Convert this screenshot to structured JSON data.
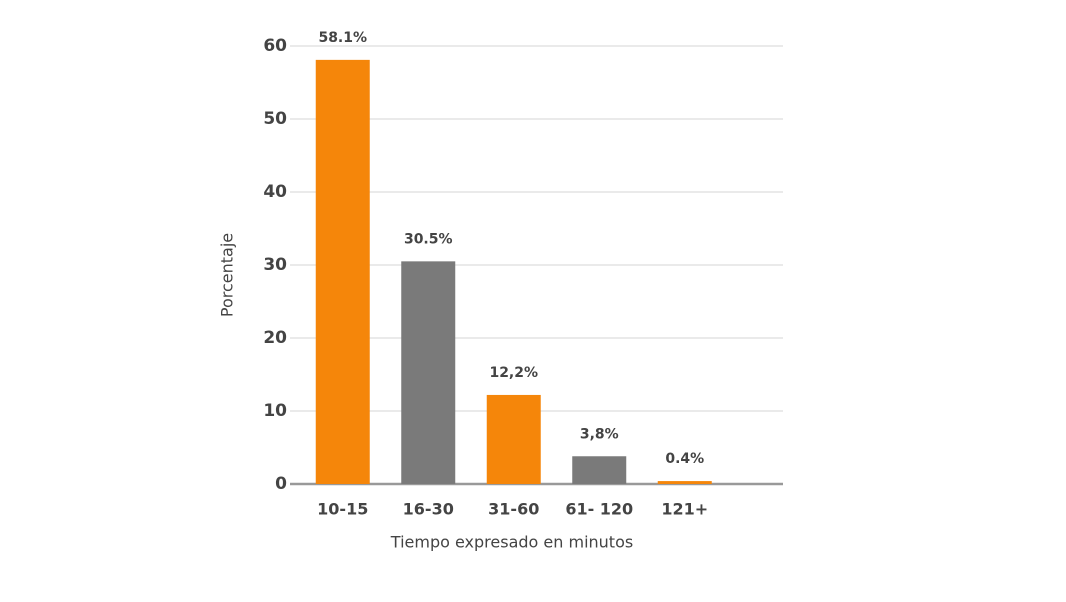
{
  "chart_data": {
    "type": "bar",
    "categories": [
      "10-15",
      "16-30",
      "31-60",
      "61- 120",
      "121+"
    ],
    "values": [
      58.1,
      30.5,
      12.2,
      3.8,
      0.4
    ],
    "value_labels": [
      "58.1%",
      "30.5%",
      "12,2%",
      "3,8%",
      "0.4%"
    ],
    "colors": [
      "#f5860a",
      "#7a7a7a",
      "#f5860a",
      "#7a7a7a",
      "#f5860a"
    ],
    "x_label": "Tiempo expresado en minutos",
    "y_label": "Porcentaje",
    "ylim": [
      0,
      60
    ],
    "yticks": [
      0,
      10,
      20,
      30,
      40,
      50,
      60
    ],
    "grid": true
  }
}
